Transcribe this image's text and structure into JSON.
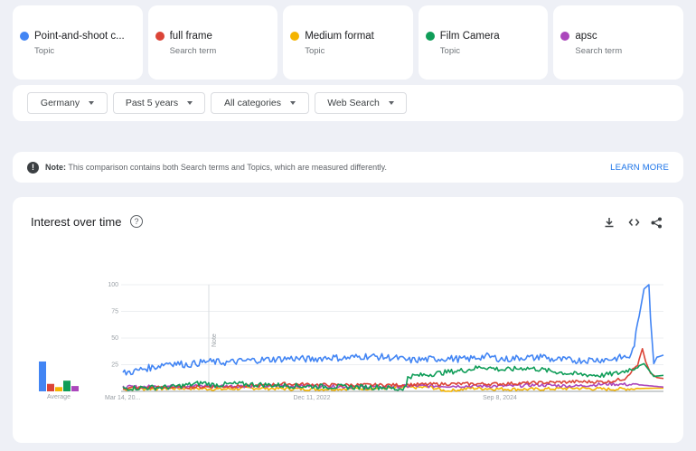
{
  "terms": [
    {
      "name": "Point-and-shoot c...",
      "type": "Topic",
      "color": "#4285f4"
    },
    {
      "name": "full frame",
      "type": "Search term",
      "color": "#db4437"
    },
    {
      "name": "Medium format",
      "type": "Topic",
      "color": "#f4b400"
    },
    {
      "name": "Film Camera",
      "type": "Topic",
      "color": "#0f9d58"
    },
    {
      "name": "apsc",
      "type": "Search term",
      "color": "#ab47bc"
    }
  ],
  "filters": {
    "region": "Germany",
    "time": "Past 5 years",
    "category": "All categories",
    "search_type": "Web Search"
  },
  "note": {
    "label": "Note:",
    "text": "This comparison contains both Search terms and Topics, which are measured differently.",
    "link": "LEARN MORE"
  },
  "panel": {
    "title": "Interest over time",
    "help": "?",
    "tools": [
      "download-icon",
      "embed-icon",
      "share-icon"
    ]
  },
  "chart_data": {
    "type": "line",
    "x_ticks": [
      "Mar 14, 20...",
      "Dec 11, 2022",
      "Sep 8, 2024"
    ],
    "y_ticks": [
      100,
      75,
      50,
      25
    ],
    "ylim": [
      0,
      100
    ],
    "annotation": "Note",
    "averages_label": "Average",
    "averages": [
      {
        "name": "Point-and-shoot c...",
        "value": 28
      },
      {
        "name": "full frame",
        "value": 7
      },
      {
        "name": "Medium format",
        "value": 4
      },
      {
        "name": "Film Camera",
        "value": 10
      },
      {
        "name": "apsc",
        "value": 5
      }
    ],
    "series": [
      {
        "name": "Point-and-shoot c...",
        "color": "#4285f4",
        "keys": [
          [
            0,
            17
          ],
          [
            8,
            19
          ],
          [
            12,
            21
          ],
          [
            20,
            23
          ],
          [
            28,
            27
          ],
          [
            40,
            25
          ],
          [
            52,
            28
          ],
          [
            64,
            27
          ],
          [
            78,
            29
          ],
          [
            92,
            30
          ],
          [
            104,
            31
          ],
          [
            116,
            30
          ],
          [
            128,
            32
          ],
          [
            136,
            31
          ],
          [
            150,
            33
          ],
          [
            162,
            32
          ],
          [
            170,
            31
          ],
          [
            176,
            29
          ],
          [
            188,
            30
          ],
          [
            200,
            31
          ],
          [
            212,
            30
          ],
          [
            224,
            33
          ],
          [
            236,
            30
          ],
          [
            248,
            32
          ],
          [
            256,
            31
          ],
          [
            258,
            34
          ],
          [
            264,
            30
          ],
          [
            280,
            29
          ],
          [
            300,
            30
          ],
          [
            314,
            33
          ],
          [
            316,
            45
          ],
          [
            322,
            96
          ],
          [
            325,
            100
          ],
          [
            326,
            68
          ],
          [
            328,
            26
          ],
          [
            330,
            32
          ],
          [
            334,
            34
          ]
        ]
      },
      {
        "name": "full frame",
        "color": "#db4437",
        "keys": [
          [
            0,
            3
          ],
          [
            40,
            4
          ],
          [
            80,
            5
          ],
          [
            100,
            7
          ],
          [
            130,
            6
          ],
          [
            170,
            6
          ],
          [
            200,
            7
          ],
          [
            230,
            7
          ],
          [
            256,
            8
          ],
          [
            280,
            9
          ],
          [
            300,
            9
          ],
          [
            310,
            12
          ],
          [
            318,
            25
          ],
          [
            321,
            40
          ],
          [
            323,
            28
          ],
          [
            326,
            17
          ],
          [
            330,
            13
          ],
          [
            334,
            12
          ]
        ]
      },
      {
        "name": "Medium format",
        "color": "#f4b400",
        "keys": [
          [
            0,
            2
          ],
          [
            40,
            3
          ],
          [
            60,
            2
          ],
          [
            80,
            3
          ],
          [
            120,
            2
          ],
          [
            160,
            3
          ],
          [
            190,
            4
          ],
          [
            200,
            0
          ],
          [
            215,
            3
          ],
          [
            240,
            2
          ],
          [
            256,
            2
          ],
          [
            280,
            3
          ],
          [
            300,
            2
          ],
          [
            330,
            3
          ],
          [
            334,
            3
          ]
        ]
      },
      {
        "name": "Film Camera",
        "color": "#0f9d58",
        "keys": [
          [
            0,
            3
          ],
          [
            30,
            4
          ],
          [
            50,
            8
          ],
          [
            56,
            6
          ],
          [
            70,
            7
          ],
          [
            90,
            6
          ],
          [
            110,
            5
          ],
          [
            140,
            4
          ],
          [
            160,
            4
          ],
          [
            170,
            2
          ],
          [
            175,
            4
          ],
          [
            176,
            14
          ],
          [
            184,
            15
          ],
          [
            200,
            18
          ],
          [
            212,
            20
          ],
          [
            222,
            23
          ],
          [
            236,
            20
          ],
          [
            248,
            22
          ],
          [
            256,
            21
          ],
          [
            264,
            19
          ],
          [
            280,
            16
          ],
          [
            296,
            15
          ],
          [
            306,
            17
          ],
          [
            316,
            22
          ],
          [
            322,
            26
          ],
          [
            328,
            14
          ],
          [
            334,
            15
          ]
        ]
      },
      {
        "name": "apsc",
        "color": "#ab47bc",
        "keys": [
          [
            0,
            4
          ],
          [
            40,
            5
          ],
          [
            80,
            5
          ],
          [
            120,
            5
          ],
          [
            150,
            4
          ],
          [
            180,
            5
          ],
          [
            210,
            5
          ],
          [
            240,
            5
          ],
          [
            256,
            6
          ],
          [
            280,
            5
          ],
          [
            300,
            7
          ],
          [
            320,
            6
          ],
          [
            334,
            4
          ]
        ]
      }
    ]
  }
}
